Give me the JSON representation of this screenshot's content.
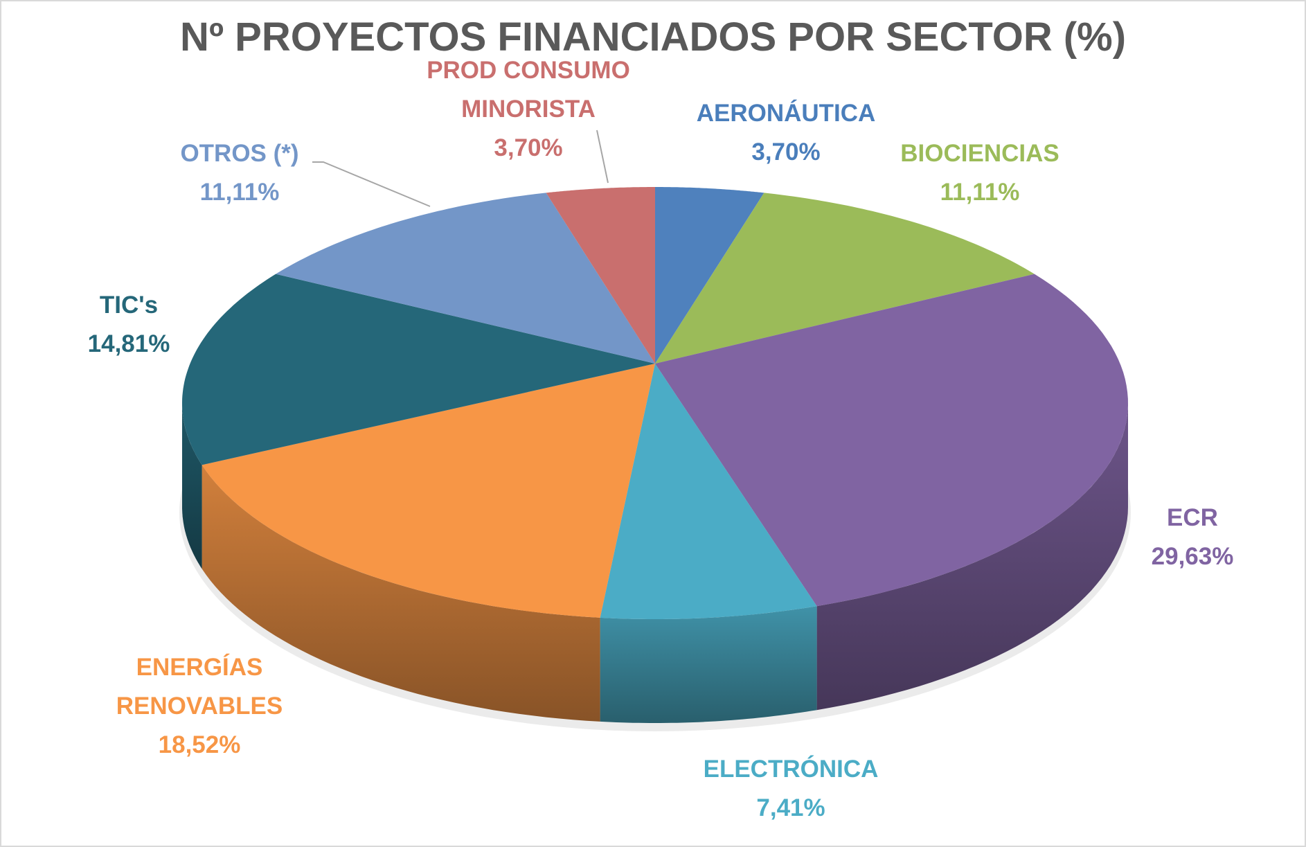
{
  "chart_data": {
    "type": "pie",
    "style": "3d",
    "title": "Nº PROYECTOS FINANCIADOS POR SECTOR (%)",
    "slices": [
      {
        "name": "AERONÁUTICA",
        "lines": [
          "AERONÁUTICA"
        ],
        "value": 3.7,
        "label": "3,70%",
        "color": "#4f81bd",
        "label_color": "#4a7ebb"
      },
      {
        "name": "BIOCIENCIAS",
        "lines": [
          "BIOCIENCIAS"
        ],
        "value": 11.11,
        "label": "11,11%",
        "color": "#9bbb59",
        "label_color": "#9bbb59"
      },
      {
        "name": "ECR",
        "lines": [
          "ECR"
        ],
        "value": 29.63,
        "label": "29,63%",
        "color": "#8064a2",
        "label_color": "#8064a2"
      },
      {
        "name": "ELECTRÓNICA",
        "lines": [
          "ELECTRÓNICA"
        ],
        "value": 7.41,
        "label": "7,41%",
        "color": "#4bacc6",
        "label_color": "#4bacc6"
      },
      {
        "name": "ENERGÍAS RENOVABLES",
        "lines": [
          "ENERGÍAS",
          "RENOVABLES"
        ],
        "value": 18.52,
        "label": "18,52%",
        "color": "#f79646",
        "label_color": "#f79646"
      },
      {
        "name": "TIC's",
        "lines": [
          "TIC's"
        ],
        "value": 14.81,
        "label": "14,81%",
        "color": "#256779",
        "label_color": "#256779"
      },
      {
        "name": "OTROS (*)",
        "lines": [
          "OTROS (*)"
        ],
        "value": 11.11,
        "label": "11,11%",
        "color": "#7396c8",
        "label_color": "#7396c8"
      },
      {
        "name": "PROD CONSUMO MINORISTA",
        "lines": [
          "PROD CONSUMO",
          "MINORISTA"
        ],
        "value": 3.7,
        "label": "3,70%",
        "color": "#c96f6e",
        "label_color": "#c96f6e"
      }
    ],
    "start_angle": "top",
    "direction": "clockwise",
    "legend": "none"
  }
}
